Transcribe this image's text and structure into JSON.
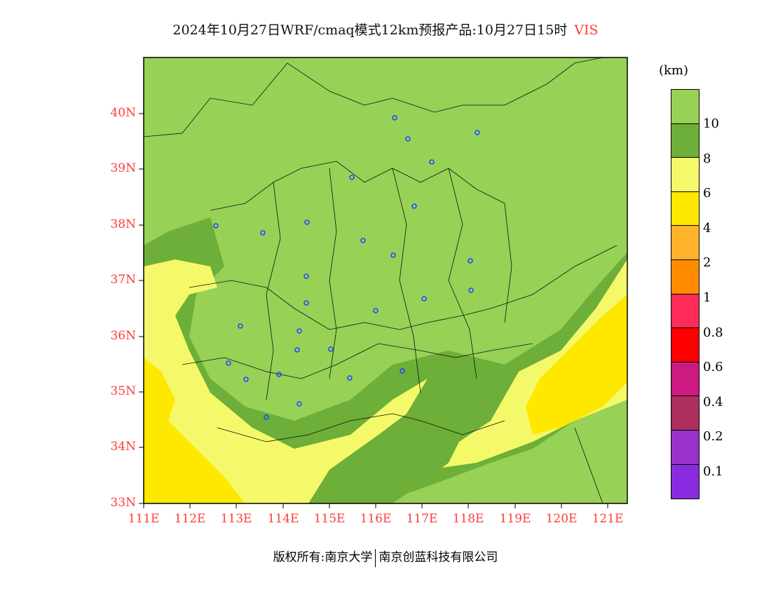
{
  "title": {
    "main": "2024年10月27日WRF/cmaq模式12km预报产品:10月27日15时",
    "variable": "VIS"
  },
  "axes": {
    "lat_labels": [
      "40N",
      "39N",
      "38N",
      "37N",
      "36N",
      "35N",
      "34N",
      "33N"
    ],
    "lon_labels": [
      "111E",
      "112E",
      "113E",
      "114E",
      "115E",
      "116E",
      "117E",
      "118E",
      "119E",
      "120E",
      "121E"
    ]
  },
  "legend": {
    "unit": "(km)",
    "colors": [
      "#97d156",
      "#6daf38",
      "#f4f96a",
      "#ffe800",
      "#ffb22a",
      "#ff8c00",
      "#ff2c5a",
      "#ff0000",
      "#cc1a80",
      "#ad2e5f",
      "#9932c9",
      "#8a2be2"
    ],
    "labels": [
      "10",
      "8",
      "6",
      "4",
      "2",
      "1",
      "0.8",
      "0.6",
      "0.4",
      "0.2",
      "0.1"
    ]
  },
  "footer": {
    "copyright": "版权所有:南京大学",
    "company": "南京创蓝科技有限公司"
  }
}
